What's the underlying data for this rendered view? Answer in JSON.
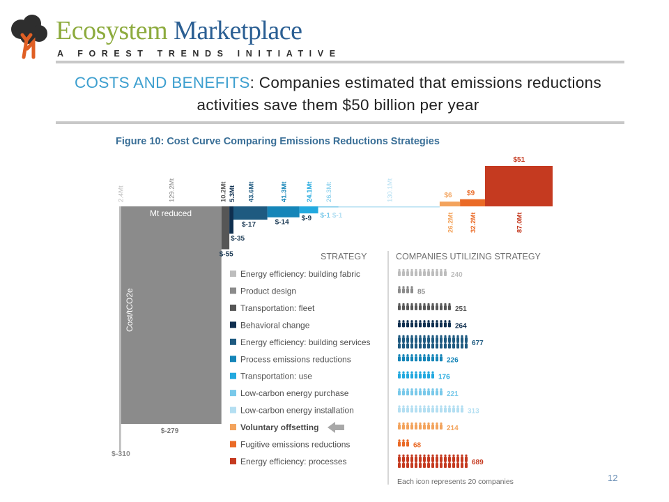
{
  "header": {
    "brand_word1": "Ecosystem",
    "brand_word2": "Marketplace",
    "tagline": "A FOREST TRENDS INITIATIVE"
  },
  "headline": {
    "highlight": "COSTS AND BENEFITS",
    "rest": ": Companies estimated that emissions reductions activities save them $50 billion per year"
  },
  "chart_data": {
    "type": "bar",
    "title": "Figure 10: Cost Curve Comparing Emissions Reductions Strategies",
    "ylabel": "Cost/tCO2e",
    "xlabel": "Mt reduced",
    "bottom_label": "$-310",
    "ylim": [
      -310,
      60
    ],
    "strategy_header": "STRATEGY",
    "companies_header": "COMPANIES UTILIZING STRATEGY",
    "footnote": "Each icon represents 20 companies",
    "highlighted_strategy": "Voluntary offsetting",
    "series": [
      {
        "strategy": "Energy efficiency: building fabric",
        "mt": 2.4,
        "mt_label": "2.4Mt",
        "cost": -310,
        "cost_label": "",
        "companies": 240,
        "color": "#bdbdbd"
      },
      {
        "strategy": "Product design",
        "mt": 129.2,
        "mt_label": "129.2Mt",
        "cost": -279,
        "cost_label": "$-279",
        "companies": 85,
        "color": "#8b8b8b"
      },
      {
        "strategy": "Transportation: fleet",
        "mt": 10.2,
        "mt_label": "10.2Mt",
        "cost": -55,
        "cost_label": "$-55",
        "companies": 251,
        "color": "#565656"
      },
      {
        "strategy": "Behavioral change",
        "mt": 5.3,
        "mt_label": "5.3Mt",
        "cost": -35,
        "cost_label": "$-35",
        "companies": 264,
        "color": "#0f2f4f"
      },
      {
        "strategy": "Energy efficiency: building services",
        "mt": 43.6,
        "mt_label": "43.6Mt",
        "cost": -17,
        "cost_label": "$-17",
        "companies": 677,
        "color": "#1e5a80"
      },
      {
        "strategy": "Process emissions reductions",
        "mt": 41.3,
        "mt_label": "41.3Mt",
        "cost": -14,
        "cost_label": "$-14",
        "companies": 226,
        "color": "#1585b8"
      },
      {
        "strategy": "Transportation: use",
        "mt": 24.1,
        "mt_label": "24.1Mt",
        "cost": -9,
        "cost_label": "$-9",
        "companies": 176,
        "color": "#22a9df"
      },
      {
        "strategy": "Low-carbon energy purchase",
        "mt": 26.3,
        "mt_label": "26.3Mt",
        "cost": -1,
        "cost_label": "$-1",
        "companies": 221,
        "color": "#79c9ea"
      },
      {
        "strategy": "Low-carbon energy installation",
        "mt": 130.1,
        "mt_label": "130.1Mt",
        "cost": -1,
        "cost_label": "$-1",
        "companies": 313,
        "color": "#b4dff2"
      },
      {
        "strategy": "Voluntary offsetting",
        "mt": 26.2,
        "mt_label": "26.2Mt",
        "cost": 6,
        "cost_label": "$6",
        "companies": 214,
        "color": "#f3a35c"
      },
      {
        "strategy": "Fugitive emissions reductions",
        "mt": 32.2,
        "mt_label": "32.2Mt",
        "cost": 9,
        "cost_label": "$9",
        "companies": 68,
        "color": "#ea6a26"
      },
      {
        "strategy": "Energy efficiency: processes",
        "mt": 87.0,
        "mt_label": "87.0Mt",
        "cost": 51,
        "cost_label": "$51",
        "companies": 689,
        "color": "#c53a20"
      }
    ]
  },
  "footer": {
    "page_number": "12"
  }
}
